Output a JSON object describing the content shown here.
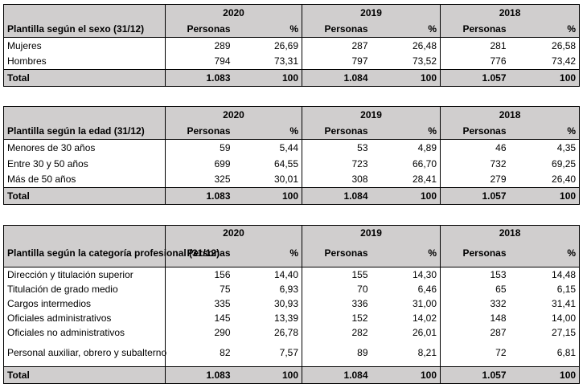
{
  "percent_label": "%",
  "personas_label": "Personas",
  "total_label": "Total",
  "years": [
    "2020",
    "2019",
    "2018"
  ],
  "sexo": {
    "title": "Plantilla según el sexo (31/12)",
    "rows": [
      {
        "label": "Mujeres",
        "values": [
          "289",
          "26,69",
          "287",
          "26,48",
          "281",
          "26,58"
        ]
      },
      {
        "label": "Hombres",
        "values": [
          "794",
          "73,31",
          "797",
          "73,52",
          "776",
          "73,42"
        ]
      }
    ],
    "total": [
      "1.083",
      "100",
      "1.084",
      "100",
      "1.057",
      "100"
    ]
  },
  "edad": {
    "title": "Plantilla según la edad (31/12)",
    "rows": [
      {
        "label": "Menores de 30 años",
        "values": [
          "59",
          "5,44",
          "53",
          "4,89",
          "46",
          "4,35"
        ]
      },
      {
        "label": "Entre 30 y 50 años",
        "values": [
          "699",
          "64,55",
          "723",
          "66,70",
          "732",
          "69,25"
        ]
      },
      {
        "label": "Más de 50 años",
        "values": [
          "325",
          "30,01",
          "308",
          "28,41",
          "279",
          "26,40"
        ]
      }
    ],
    "total": [
      "1.083",
      "100",
      "1.084",
      "100",
      "1.057",
      "100"
    ]
  },
  "categoria": {
    "title": "Plantilla según la categoría profesional (31/12)",
    "rows": [
      {
        "label": "Dirección y titulación superior",
        "values": [
          "156",
          "14,40",
          "155",
          "14,30",
          "153",
          "14,48"
        ]
      },
      {
        "label": "Titulación de grado medio",
        "values": [
          "75",
          "6,93",
          "70",
          "6,46",
          "65",
          "6,15"
        ]
      },
      {
        "label": "Cargos intermedios",
        "values": [
          "335",
          "30,93",
          "336",
          "31,00",
          "332",
          "31,41"
        ]
      },
      {
        "label": "Oficiales administrativos",
        "values": [
          "145",
          "13,39",
          "152",
          "14,02",
          "148",
          "14,00"
        ]
      },
      {
        "label": "Oficiales no administrativos",
        "values": [
          "290",
          "26,78",
          "282",
          "26,01",
          "287",
          "27,15"
        ]
      },
      {
        "label": "Personal auxiliar, obrero y subalterno",
        "values": [
          "82",
          "7,57",
          "89",
          "8,21",
          "72",
          "6,81"
        ]
      }
    ],
    "total": [
      "1.083",
      "100",
      "1.084",
      "100",
      "1.057",
      "100"
    ]
  }
}
